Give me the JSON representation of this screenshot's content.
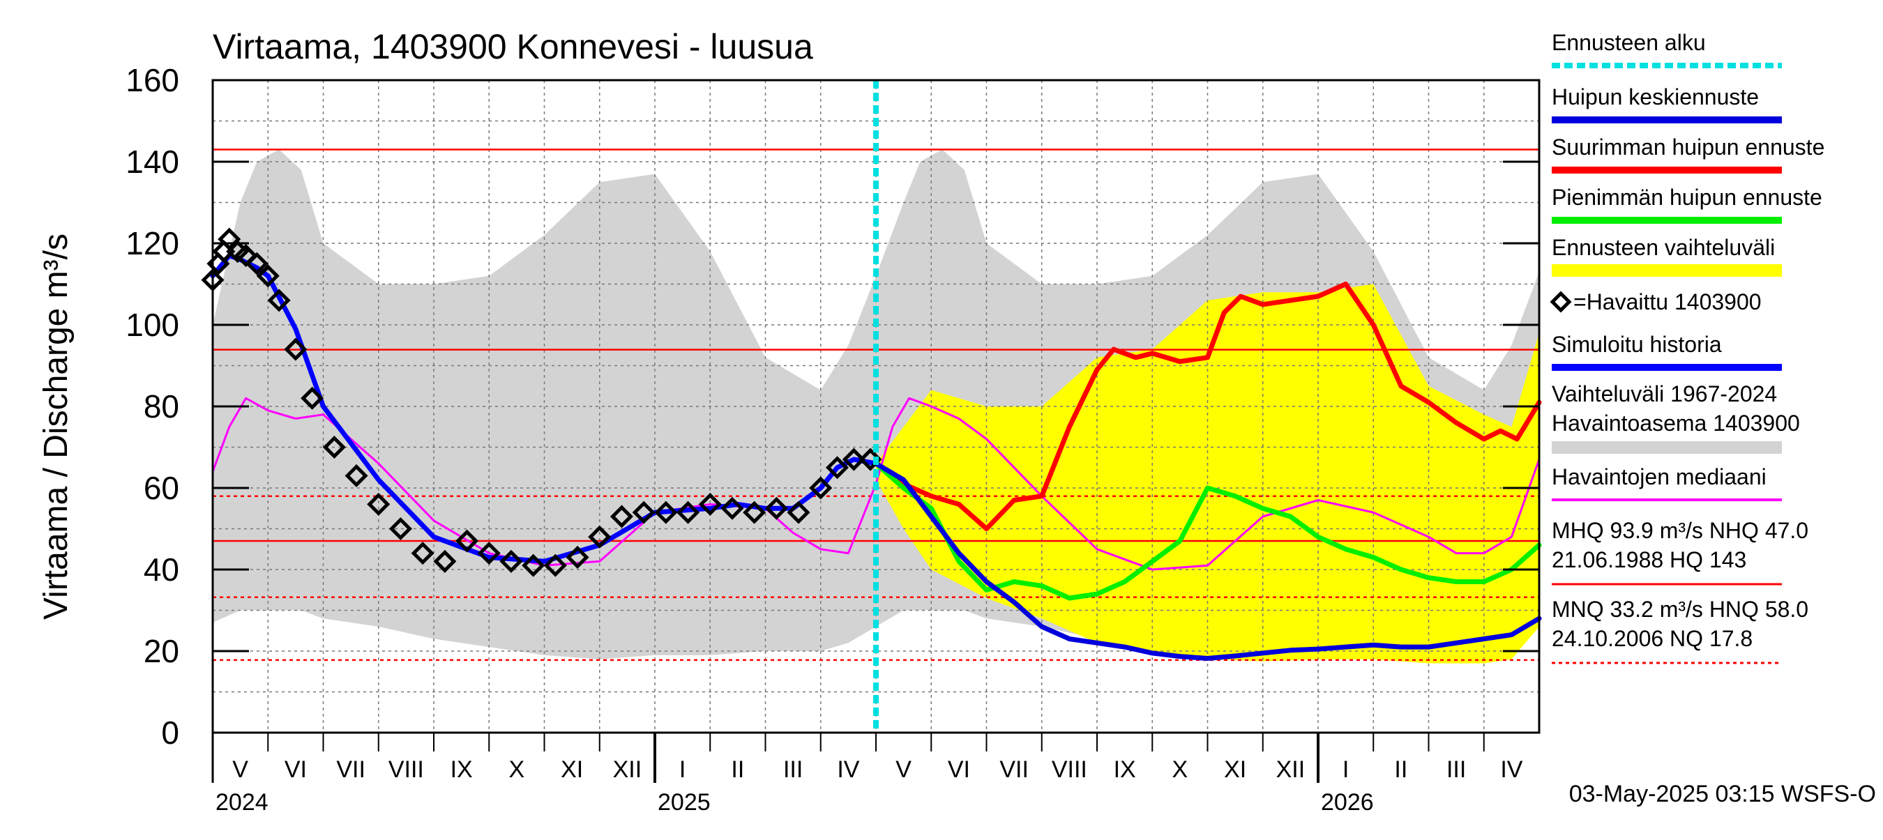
{
  "chart_data": {
    "type": "line",
    "title": "Virtaama, 1403900 Konnevesi - luusua",
    "ylabel": "Virtaama / Discharge   m³/s",
    "ylim": [
      0,
      160
    ],
    "yticks": [
      0,
      20,
      40,
      60,
      80,
      100,
      120,
      140,
      160
    ],
    "x_unit": "months since 2024-05-01",
    "xlim": [
      0,
      24
    ],
    "forecast_start": 12,
    "month_labels": [
      "V",
      "VI",
      "VII",
      "VIII",
      "IX",
      "X",
      "XI",
      "XII",
      "I",
      "II",
      "III",
      "IV",
      "V",
      "VI",
      "VII",
      "VIII",
      "IX",
      "X",
      "XI",
      "XII",
      "I",
      "II",
      "III",
      "IV"
    ],
    "year_labels": [
      {
        "label": "2024",
        "x": 0
      },
      {
        "label": "2025",
        "x": 8
      },
      {
        "label": "2026",
        "x": 20
      }
    ],
    "reference_lines": [
      {
        "name": "HQ",
        "y": 143,
        "style": "solid"
      },
      {
        "name": "MHQ",
        "y": 93.9,
        "style": "solid"
      },
      {
        "name": "HNQ",
        "y": 58.0,
        "style": "dashed"
      },
      {
        "name": "NHQ",
        "y": 47.0,
        "style": "solid"
      },
      {
        "name": "MNQ",
        "y": 33.2,
        "style": "dashed"
      },
      {
        "name": "NQ",
        "y": 17.8,
        "style": "dashed"
      }
    ],
    "series": [
      {
        "name": "Vaihteluväli 1967-2024 Havaintoasema 1403900",
        "type": "band",
        "color": "#d3d3d3",
        "x": [
          0,
          0.5,
          0.8,
          1.2,
          1.6,
          2.0,
          3.0,
          4.0,
          5.0,
          6.0,
          7.0,
          8.0,
          9.0,
          10.0,
          11.0,
          11.5,
          12.0,
          12.5,
          12.8,
          13.2,
          13.6,
          14.0,
          15.0,
          16.0,
          17.0,
          18.0,
          19.0,
          20.0,
          21.0,
          22.0,
          23.0,
          23.5,
          24.0
        ],
        "lower": [
          27,
          30,
          30,
          30,
          30,
          28,
          26,
          23,
          21,
          19,
          18,
          19,
          19,
          20,
          20,
          22,
          26,
          30,
          30,
          30,
          30,
          28,
          26,
          23,
          21,
          19,
          18,
          19,
          19,
          20,
          20,
          22,
          27
        ],
        "upper": [
          100,
          130,
          140,
          143,
          138,
          120,
          110,
          110,
          112,
          122,
          135,
          137,
          118,
          92,
          84,
          95,
          112,
          130,
          140,
          143,
          138,
          120,
          110,
          110,
          112,
          122,
          135,
          137,
          118,
          92,
          84,
          95,
          113
        ]
      },
      {
        "name": "Ennusteen vaihteluväli",
        "type": "band",
        "color": "#ffff00",
        "x": [
          12,
          12.5,
          13,
          14,
          15,
          16,
          17,
          18,
          19,
          20,
          21,
          22,
          23,
          23.5,
          24
        ],
        "lower": [
          62,
          50,
          40,
          33,
          28,
          22,
          20,
          18,
          17.5,
          18,
          18,
          17,
          17,
          18,
          26
        ],
        "upper": [
          66,
          75,
          84,
          80,
          80,
          92,
          94,
          106,
          108,
          108,
          110,
          85,
          78,
          75,
          98
        ]
      },
      {
        "name": "Havaintojen mediaani",
        "type": "line",
        "color": "#ff00ff",
        "x": [
          0,
          0.3,
          0.6,
          1,
          1.5,
          2,
          3,
          4,
          5,
          6,
          7,
          8,
          9,
          10,
          10.5,
          11,
          11.5,
          12,
          12.3,
          12.6,
          13,
          13.5,
          14,
          15,
          16,
          17,
          18,
          19,
          20,
          21,
          22,
          22.5,
          23,
          23.5,
          24
        ],
        "y": [
          64,
          75,
          82,
          79,
          77,
          78,
          66,
          52,
          44,
          41,
          42,
          54,
          56,
          55,
          49,
          45,
          44,
          61,
          75,
          82,
          80,
          77,
          72,
          58,
          45,
          40,
          41,
          53,
          57,
          54,
          48,
          44,
          44,
          48,
          67
        ]
      },
      {
        "name": "Simuloitu historia",
        "type": "line",
        "color": "#0000ff",
        "x": [
          0,
          0.3,
          0.5,
          0.8,
          1,
          1.5,
          2,
          3,
          4,
          5,
          6,
          7,
          8,
          9,
          9.5,
          10,
          10.5,
          11,
          11.3,
          11.6,
          12
        ],
        "y": [
          112,
          117,
          116,
          114,
          112,
          99,
          80,
          62,
          48,
          43,
          42,
          46,
          54,
          55,
          56,
          55,
          55,
          60,
          65,
          67,
          66
        ]
      },
      {
        "name": "Suurimman huipun ennuste",
        "type": "line",
        "color": "#ff0000",
        "x": [
          12,
          12.5,
          13,
          13.5,
          14,
          14.5,
          15,
          15.5,
          16,
          16.3,
          16.7,
          17,
          17.5,
          18,
          18.3,
          18.6,
          19,
          19.5,
          20,
          20.5,
          21,
          21.5,
          22,
          22.5,
          23,
          23.3,
          23.6,
          24
        ],
        "y": [
          66,
          61,
          58,
          56,
          50,
          57,
          58,
          75,
          89,
          94,
          92,
          93,
          91,
          92,
          103,
          107,
          105,
          106,
          107,
          110,
          100,
          85,
          81,
          76,
          72,
          74,
          72,
          81
        ]
      },
      {
        "name": "Pienimmän huipun ennuste",
        "type": "line",
        "color": "#00ee00",
        "x": [
          12,
          12.5,
          13,
          13.5,
          14,
          14.5,
          15,
          15.5,
          16,
          16.5,
          17,
          17.5,
          18,
          18.5,
          19,
          19.5,
          20,
          20.5,
          21,
          21.5,
          22,
          22.5,
          23,
          23.5,
          24
        ],
        "y": [
          66,
          60,
          55,
          42,
          35,
          37,
          36,
          33,
          34,
          37,
          42,
          47,
          60,
          58,
          55,
          53,
          48,
          45,
          43,
          40,
          38,
          37,
          37,
          40,
          46
        ]
      },
      {
        "name": "Huipun keskiennuste",
        "type": "line",
        "color": "#0000dd",
        "x": [
          12,
          12.5,
          13,
          13.5,
          14,
          14.5,
          15,
          15.5,
          16,
          16.5,
          17,
          17.5,
          18,
          18.5,
          19,
          19.5,
          20,
          20.5,
          21,
          21.5,
          22,
          22.5,
          23,
          23.5,
          24
        ],
        "y": [
          66,
          62,
          53,
          44,
          37,
          32,
          26,
          23,
          22,
          21,
          19.5,
          18.7,
          18.2,
          18.8,
          19.5,
          20.2,
          20.5,
          21,
          21.5,
          21,
          21,
          22,
          23,
          24,
          28
        ]
      },
      {
        "name": "=Havaittu 1403900",
        "type": "markers",
        "color": "#000000",
        "x": [
          0,
          0.1,
          0.2,
          0.3,
          0.45,
          0.6,
          0.8,
          1.0,
          1.2,
          1.5,
          1.8,
          2.2,
          2.6,
          3.0,
          3.4,
          3.8,
          4.2,
          4.6,
          5.0,
          5.4,
          5.8,
          6.2,
          6.6,
          7.0,
          7.4,
          7.8,
          8.2,
          8.6,
          9.0,
          9.4,
          9.8,
          10.2,
          10.6,
          11.0,
          11.3,
          11.6,
          11.9
        ],
        "y": [
          111,
          115,
          118,
          121,
          118,
          117,
          115,
          112,
          106,
          94,
          82,
          70,
          63,
          56,
          50,
          44,
          42,
          47,
          44,
          42,
          41,
          41,
          43,
          48,
          53,
          54,
          54,
          54,
          56,
          55,
          54,
          55,
          54,
          60,
          65,
          67,
          67
        ]
      }
    ],
    "legend": [
      {
        "label": "Ennusteen alku",
        "kind": "dashed-line",
        "color": "#00e0e0"
      },
      {
        "label": "Huipun keskiennuste",
        "kind": "line",
        "color": "#0000dd"
      },
      {
        "label": "Suurimman huipun ennuste",
        "kind": "line",
        "color": "#ff0000"
      },
      {
        "label": "Pienimmän huipun ennuste",
        "kind": "line",
        "color": "#00ee00"
      },
      {
        "label": "Ennusteen vaihteluväli",
        "kind": "band",
        "color": "#ffff00"
      },
      {
        "label": "=Havaittu 1403900",
        "kind": "marker",
        "color": "#000000"
      },
      {
        "label": "Simuloitu historia",
        "kind": "line",
        "color": "#0000ff"
      },
      {
        "label": "Vaihteluväli 1967-2024",
        "label2": " Havaintoasema 1403900",
        "kind": "band",
        "color": "#d3d3d3"
      },
      {
        "label": "Havaintojen mediaani",
        "kind": "line",
        "color": "#ff00ff"
      },
      {
        "label": "MHQ 93.9 m³/s NHQ 47.0",
        "label2": "21.06.1988 HQ  143",
        "kind": "line",
        "color": "#ff0000"
      },
      {
        "label": "MNQ 33.2 m³/s HNQ 58.0",
        "label2": "24.10.2006 NQ 17.8",
        "kind": "dashed-line",
        "color": "#ff0000"
      }
    ],
    "footer": "03-May-2025 03:15 WSFS-O"
  }
}
